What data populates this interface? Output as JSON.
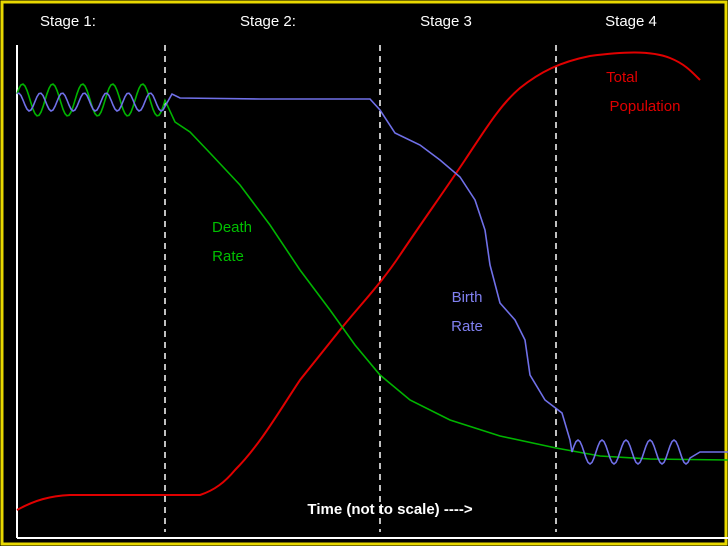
{
  "stages": [
    "Stage 1:",
    "Stage 2:",
    "Stage 3",
    "Stage 4"
  ],
  "labels": {
    "death_rate": [
      "Death",
      "Rate"
    ],
    "birth_rate": [
      "Birth",
      "Rate"
    ],
    "total_population": [
      "Total",
      "Population"
    ]
  },
  "x_axis_label": "Time (not to scale) ---->"
}
